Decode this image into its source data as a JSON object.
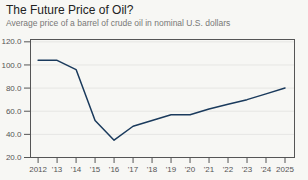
{
  "chart_data": {
    "type": "line",
    "title": "The Future Price of Oil?",
    "subtitle": "Average price of a barrel of crude oil in nominal U.S. dollars",
    "x": [
      2012,
      2013,
      2014,
      2015,
      2016,
      2017,
      2018,
      2019,
      2020,
      2021,
      2022,
      2023,
      2024,
      2025
    ],
    "values": [
      104.0,
      104.0,
      96.0,
      52.0,
      35.0,
      47.0,
      52.0,
      57.0,
      57.0,
      62.0,
      66.0,
      70.0,
      75.0,
      80.0
    ],
    "color": "#1a3a5c",
    "xlim": [
      2011.6,
      2025.5
    ],
    "xticks": [
      {
        "value": 2012,
        "label": "2012"
      },
      {
        "value": 2013,
        "label": "'13"
      },
      {
        "value": 2014,
        "label": "'14"
      },
      {
        "value": 2015,
        "label": "'15"
      },
      {
        "value": 2016,
        "label": "'16"
      },
      {
        "value": 2017,
        "label": "'17"
      },
      {
        "value": 2018,
        "label": "'18"
      },
      {
        "value": 2019,
        "label": "'19"
      },
      {
        "value": 2020,
        "label": "'20"
      },
      {
        "value": 2021,
        "label": "'21"
      },
      {
        "value": 2022,
        "label": "'22"
      },
      {
        "value": 2023,
        "label": "'23"
      },
      {
        "value": 2024,
        "label": "'24"
      },
      {
        "value": 2025,
        "label": "2025"
      }
    ],
    "ylim": [
      20.0,
      122.0
    ],
    "yticks": [
      {
        "value": 20.0,
        "label": "20.0"
      },
      {
        "value": 40.0,
        "label": "40.0"
      },
      {
        "value": 60.0,
        "label": "60.0"
      },
      {
        "value": 80.0,
        "label": "80.0"
      },
      {
        "value": 100.0,
        "label": "100.0"
      },
      {
        "value": 120.0,
        "label": "120.0"
      }
    ],
    "grid": true
  }
}
